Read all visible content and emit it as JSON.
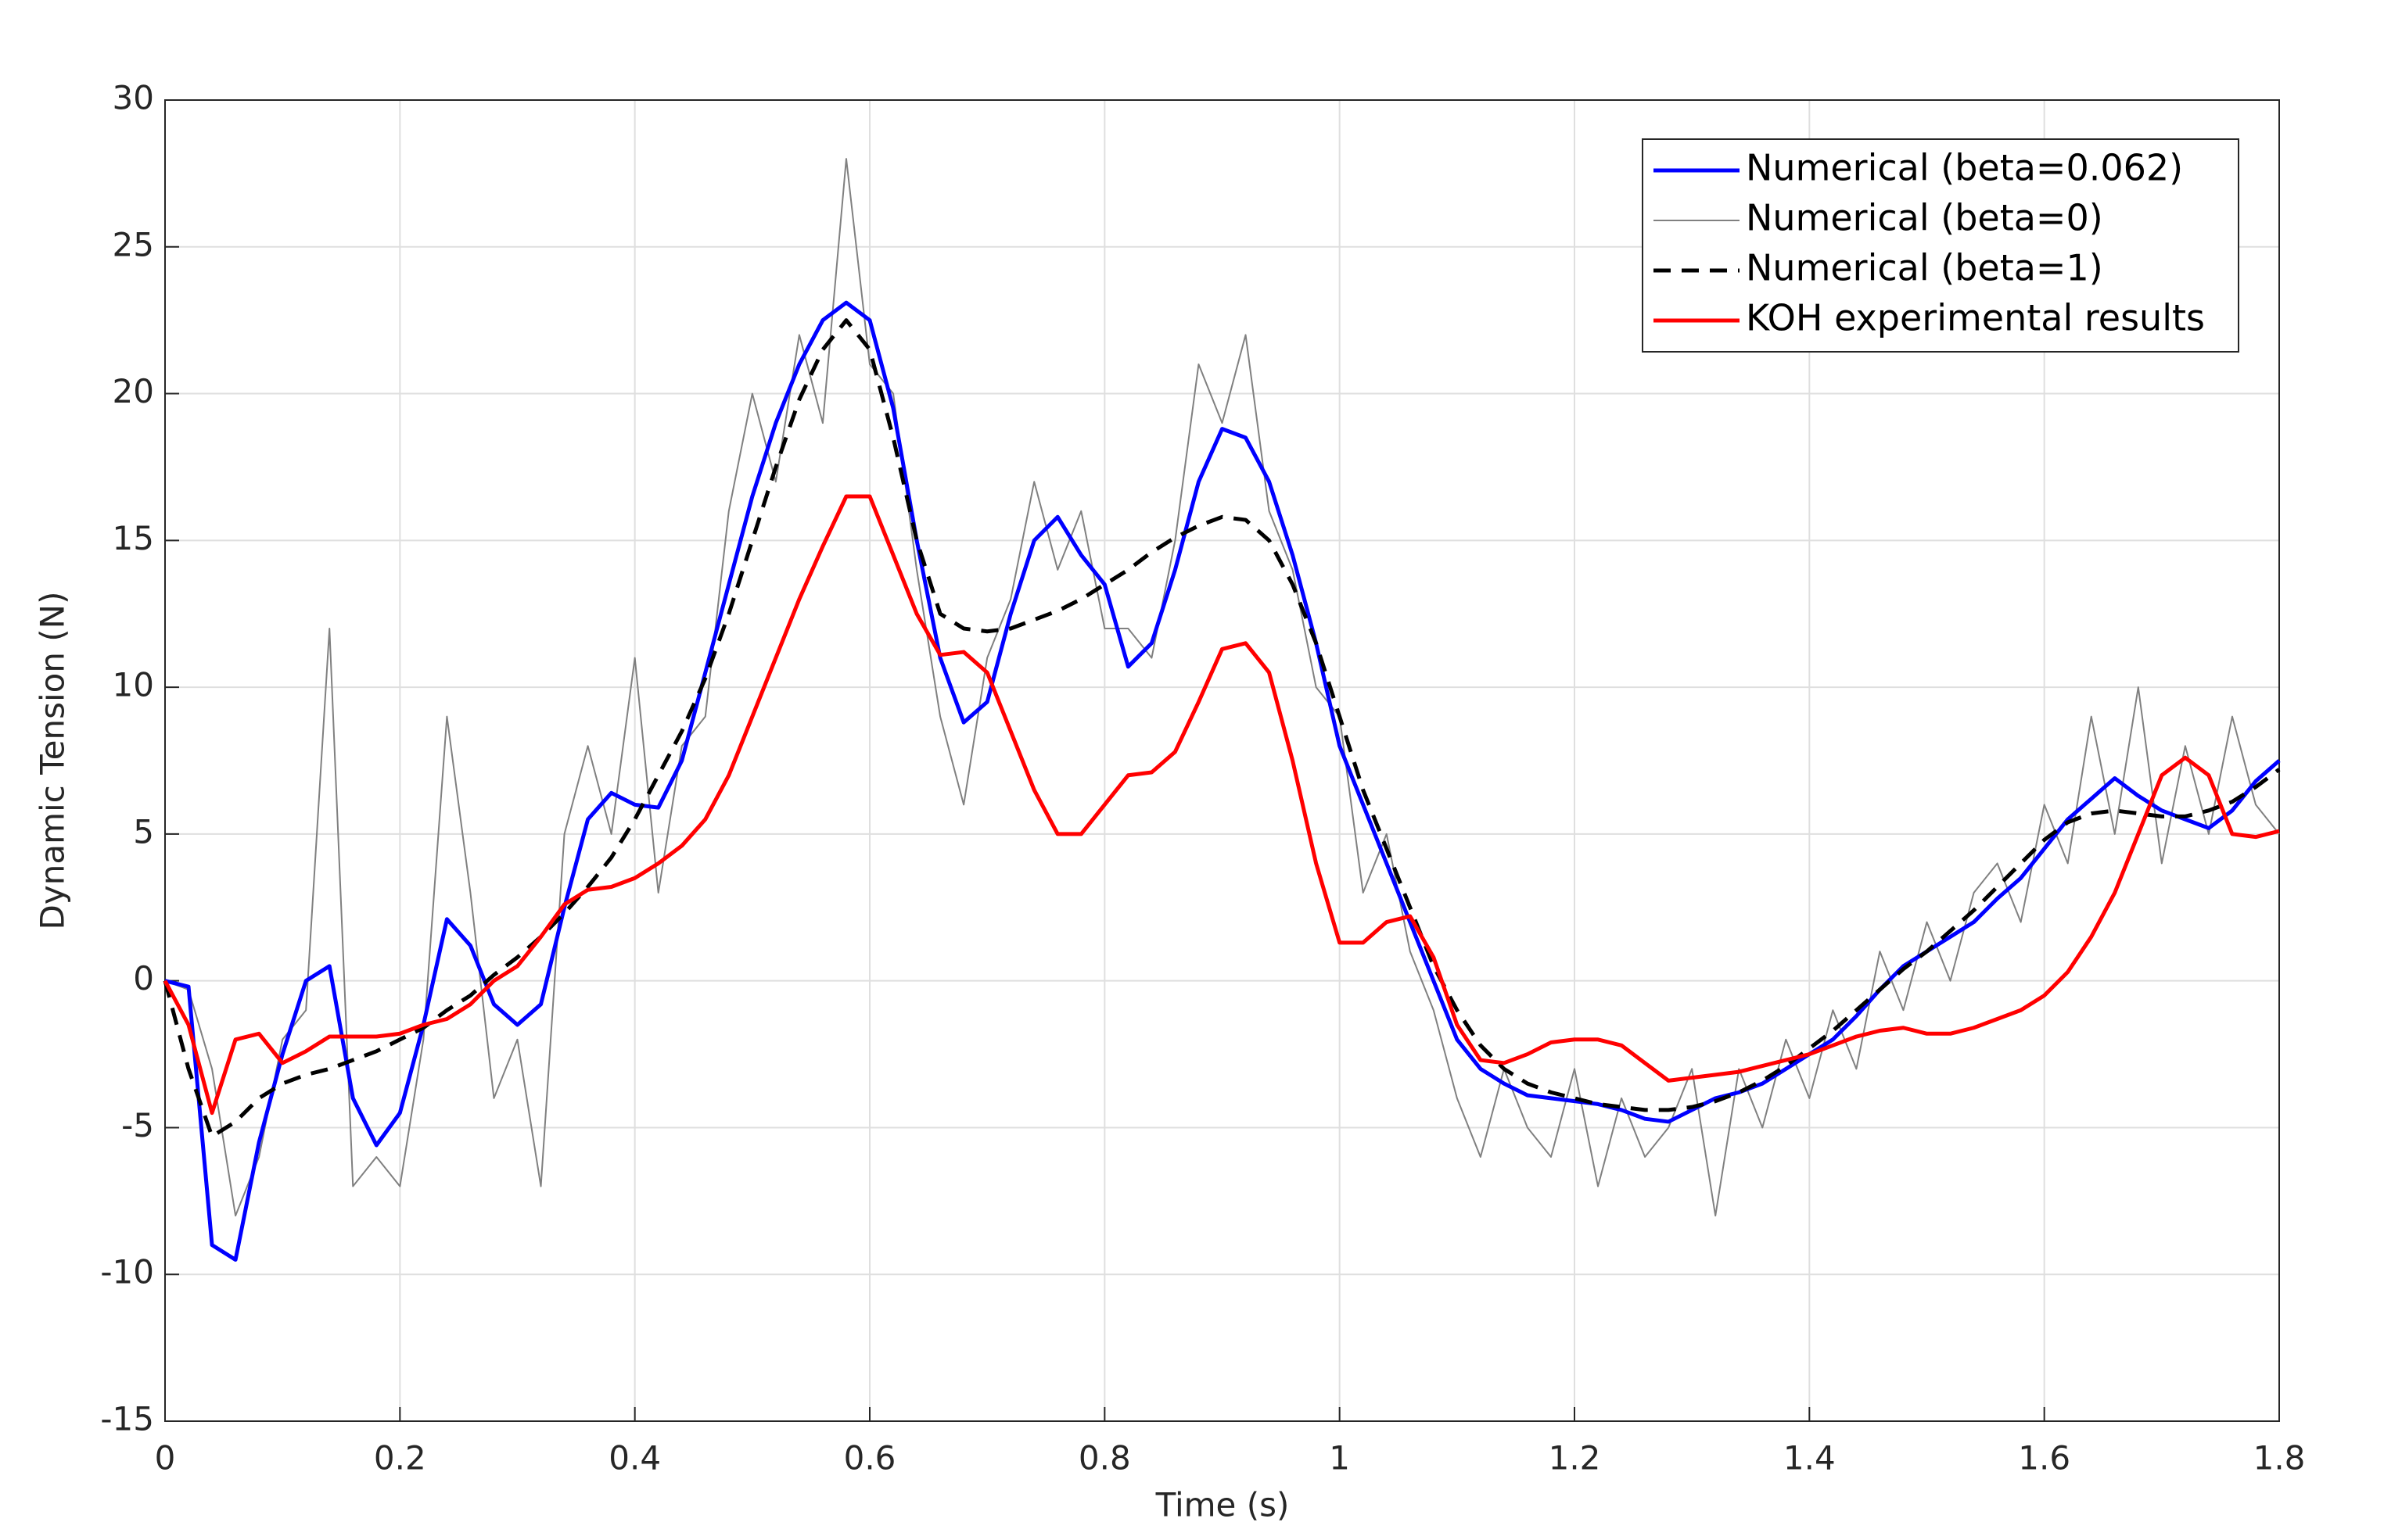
{
  "chart_data": {
    "type": "line",
    "xlabel": "Time (s)",
    "ylabel": "Dynamic Tension (N)",
    "x": [
      0,
      0.02,
      0.04,
      0.06,
      0.08,
      0.1,
      0.12,
      0.14,
      0.16,
      0.18,
      0.2,
      0.22,
      0.24,
      0.26,
      0.28,
      0.3,
      0.32,
      0.34,
      0.36,
      0.38,
      0.4,
      0.42,
      0.44,
      0.46,
      0.48,
      0.5,
      0.52,
      0.54,
      0.56,
      0.58,
      0.6,
      0.62,
      0.64,
      0.66,
      0.68,
      0.7,
      0.72,
      0.74,
      0.76,
      0.78,
      0.8,
      0.82,
      0.84,
      0.86,
      0.88,
      0.9,
      0.92,
      0.94,
      0.96,
      0.98,
      1,
      1.02,
      1.04,
      1.06,
      1.08,
      1.1,
      1.12,
      1.14,
      1.16,
      1.18,
      1.2,
      1.22,
      1.24,
      1.26,
      1.28,
      1.3,
      1.32,
      1.34,
      1.36,
      1.38,
      1.4,
      1.42,
      1.44,
      1.46,
      1.48,
      1.5,
      1.52,
      1.54,
      1.56,
      1.58,
      1.6,
      1.62,
      1.64,
      1.66,
      1.68,
      1.7,
      1.72,
      1.74,
      1.76,
      1.78,
      1.8
    ],
    "series": [
      {
        "name": "Numerical (beta=0)",
        "color": "#808080",
        "linestyle": "solid",
        "linewidth": 2,
        "legend_order": 1,
        "values": [
          0,
          -0.3,
          -3,
          -8,
          -6,
          -2,
          -1,
          12,
          -7,
          -6,
          -7,
          -2,
          9,
          3,
          -4,
          -2,
          -7,
          5,
          8,
          5,
          11,
          3,
          8,
          9,
          16,
          20,
          17,
          22,
          19,
          28,
          21,
          20,
          14,
          9,
          6,
          11,
          13,
          17,
          14,
          16,
          12,
          12,
          11,
          15,
          21,
          19,
          22,
          16,
          14,
          10,
          9,
          3,
          5,
          1,
          -1,
          -4,
          -6,
          -3,
          -5,
          -6,
          -3,
          -7,
          -4,
          -6,
          -5,
          -3,
          -8,
          -3,
          -5,
          -2,
          -4,
          -1,
          -3,
          1,
          -1,
          2,
          0,
          3,
          4,
          2,
          6,
          4,
          9,
          5,
          10,
          4,
          8,
          5,
          9,
          6,
          5
        ]
      },
      {
        "name": "Numerical (beta=0.062)",
        "color": "#0000ff",
        "linestyle": "solid",
        "linewidth": 5,
        "legend_order": 0,
        "values": [
          0,
          -0.2,
          -9,
          -9.5,
          -5.5,
          -2.5,
          0,
          0.5,
          -4,
          -5.6,
          -4.5,
          -1.5,
          2.1,
          1.2,
          -0.8,
          -1.5,
          -0.8,
          2.5,
          5.5,
          6.4,
          6,
          5.9,
          7.5,
          10.5,
          13.5,
          16.5,
          19,
          21,
          22.5,
          23.1,
          22.5,
          19.5,
          15,
          11,
          8.8,
          9.5,
          12.5,
          15,
          15.8,
          14.5,
          13.5,
          10.7,
          11.5,
          14,
          17,
          18.8,
          18.5,
          17,
          14.5,
          11.5,
          8,
          6,
          4,
          2,
          0,
          -2,
          -3,
          -3.5,
          -3.9,
          -4,
          -4.1,
          -4.2,
          -4.4,
          -4.7,
          -4.8,
          -4.4,
          -4,
          -3.8,
          -3.5,
          -3,
          -2.5,
          -2,
          -1.2,
          -0.3,
          0.5,
          1,
          1.5,
          2,
          2.8,
          3.5,
          4.5,
          5.5,
          6.2,
          6.9,
          6.3,
          5.8,
          5.5,
          5.2,
          5.8,
          6.8,
          7.5
        ]
      },
      {
        "name": "Numerical (beta=1)",
        "color": "#000000",
        "linestyle": "dashed",
        "linewidth": 5,
        "legend_order": 2,
        "values": [
          0,
          -3,
          -5.3,
          -4.8,
          -4,
          -3.5,
          -3.2,
          -3,
          -2.7,
          -2.4,
          -2,
          -1.6,
          -1,
          -0.5,
          0.2,
          0.8,
          1.5,
          2.3,
          3.2,
          4.2,
          5.5,
          7,
          8.5,
          10.3,
          12.5,
          15,
          17.5,
          19.8,
          21.5,
          22.5,
          21.5,
          18.5,
          15,
          12.5,
          12,
          11.9,
          12,
          12.3,
          12.6,
          13,
          13.5,
          14,
          14.6,
          15.1,
          15.5,
          15.8,
          15.7,
          15,
          13.5,
          11.5,
          9,
          6.5,
          4.5,
          2.5,
          0.5,
          -1,
          -2.2,
          -3,
          -3.5,
          -3.8,
          -4,
          -4.2,
          -4.3,
          -4.4,
          -4.4,
          -4.3,
          -4.1,
          -3.8,
          -3.4,
          -2.9,
          -2.3,
          -1.7,
          -1,
          -0.3,
          0.4,
          1,
          1.7,
          2.4,
          3.2,
          4,
          4.8,
          5.4,
          5.7,
          5.8,
          5.7,
          5.6,
          5.6,
          5.8,
          6.1,
          6.6,
          7.2
        ]
      },
      {
        "name": "KOH experimental results",
        "color": "#ff0000",
        "linestyle": "solid",
        "linewidth": 5,
        "legend_order": 3,
        "values": [
          0,
          -1.5,
          -4.5,
          -2,
          -1.8,
          -2.8,
          -2.4,
          -1.9,
          -1.9,
          -1.9,
          -1.8,
          -1.5,
          -1.3,
          -0.8,
          0,
          0.5,
          1.5,
          2.6,
          3.1,
          3.2,
          3.5,
          4,
          4.6,
          5.5,
          7,
          9,
          11,
          13,
          14.8,
          16.5,
          16.5,
          14.5,
          12.5,
          11.1,
          11.2,
          10.5,
          8.5,
          6.5,
          5,
          5,
          6,
          7,
          7.1,
          7.8,
          9.5,
          11.3,
          11.5,
          10.5,
          7.5,
          4,
          1.3,
          1.3,
          2,
          2.2,
          0.8,
          -1.5,
          -2.7,
          -2.8,
          -2.5,
          -2.1,
          -2,
          -2,
          -2.2,
          -2.8,
          -3.4,
          -3.3,
          -3.2,
          -3.1,
          -2.9,
          -2.7,
          -2.5,
          -2.2,
          -1.9,
          -1.7,
          -1.6,
          -1.8,
          -1.8,
          -1.6,
          -1.3,
          -1,
          -0.5,
          0.3,
          1.5,
          3,
          5,
          7,
          7.6,
          7,
          5,
          4.9,
          5.1
        ]
      }
    ],
    "xlim": [
      0,
      1.8
    ],
    "xticks": [
      0,
      0.2,
      0.4,
      0.6,
      0.8,
      1,
      1.2,
      1.4,
      1.6,
      1.8
    ],
    "ylim": [
      -15,
      30
    ],
    "yticks": [
      -15,
      -10,
      -5,
      0,
      5,
      10,
      15,
      20,
      25,
      30
    ],
    "grid": true,
    "legend": "upper right"
  }
}
